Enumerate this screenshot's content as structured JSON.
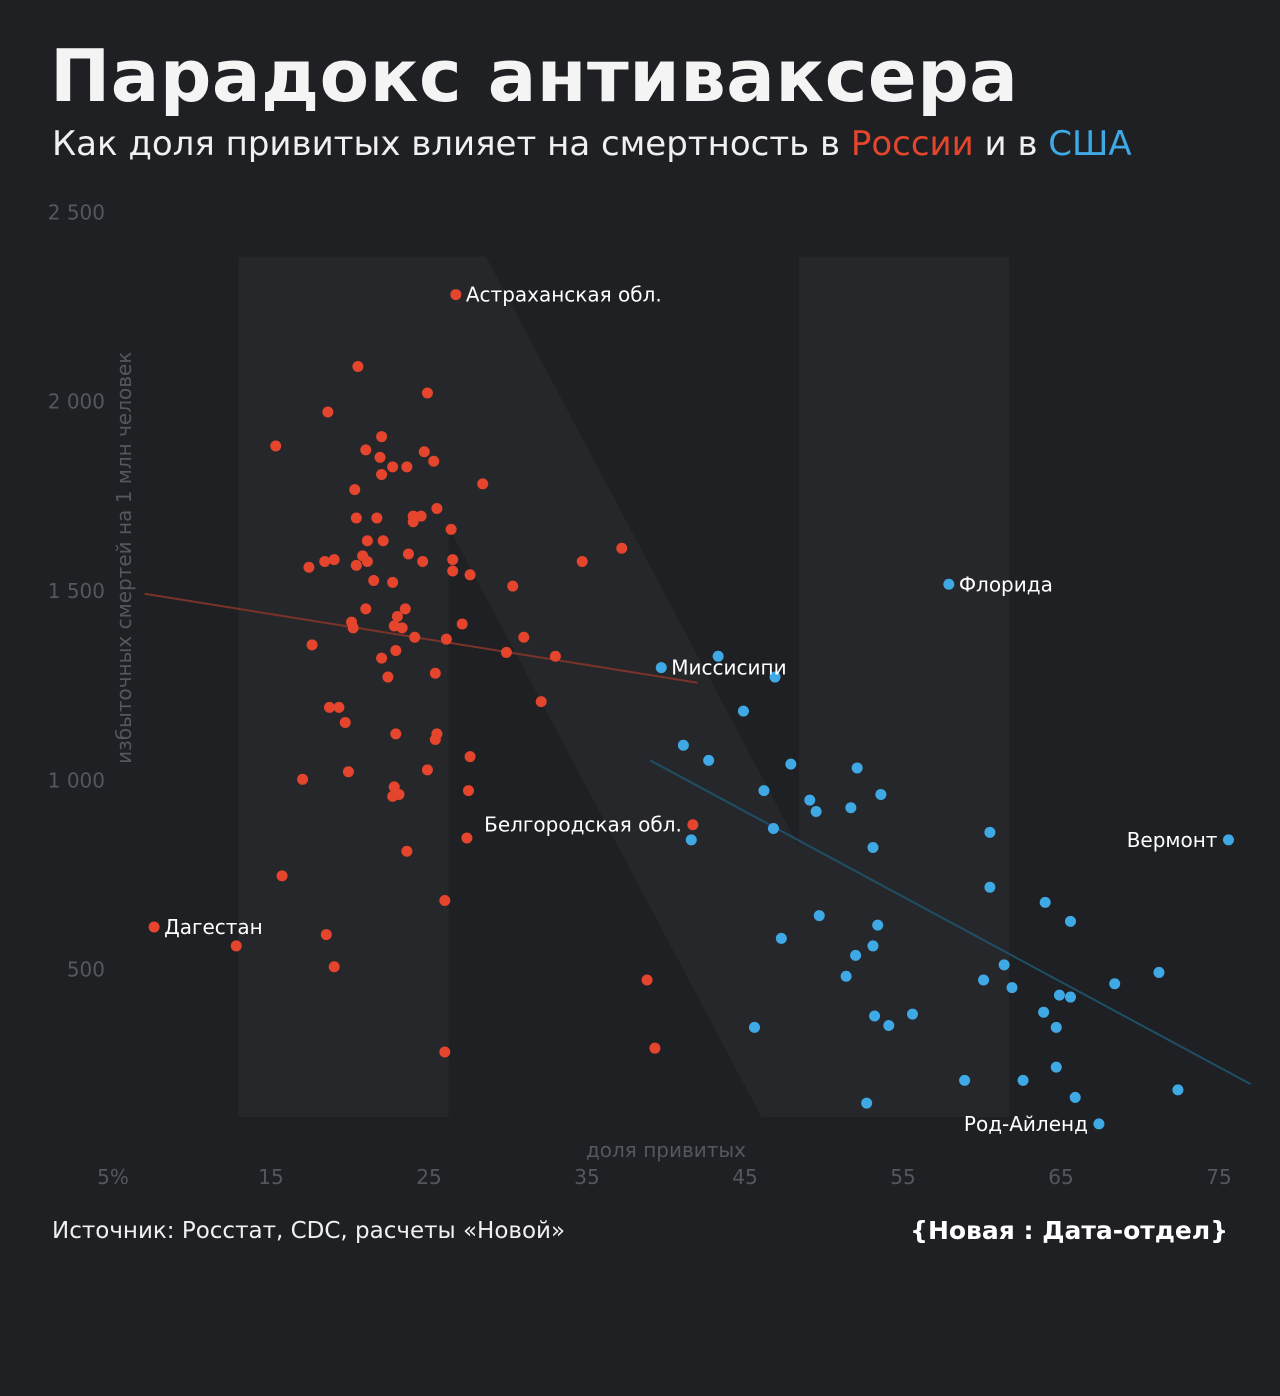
{
  "header": {
    "title": "Парадокс антиваксера",
    "subtitle_prefix": "Как доля привитых влияет на смертность в ",
    "subtitle_russia": "России",
    "subtitle_middle": " и в ",
    "subtitle_usa": "США"
  },
  "footer": {
    "source": "Источник: Росстат, CDC, расчеты «Новой»",
    "brand": "{Новая : Дата-отдел}"
  },
  "colors": {
    "background": "#1f2024",
    "russia": "#e5452c",
    "usa": "#3fa9e6",
    "russia_trend": "#7a3329",
    "usa_trend": "#1f4f66",
    "axis_text": "#55575c"
  },
  "chart_data": {
    "type": "scatter",
    "xlabel": "доля привитых",
    "ylabel": "избыточных смертей на 1 млн человек",
    "xlim": [
      5,
      77
    ],
    "ylim": [
      0,
      2600
    ],
    "x_ticks": [
      5,
      15,
      25,
      35,
      45,
      55,
      65,
      75
    ],
    "x_tick_labels": [
      "5%",
      "15",
      "25",
      "35",
      "45",
      "55",
      "65",
      "75"
    ],
    "y_ticks": [
      500,
      1000,
      1500,
      2000,
      2500
    ],
    "y_tick_labels": [
      "500",
      "1 000",
      "1 500",
      "2 000",
      "2 500"
    ],
    "grid": false,
    "series": [
      {
        "name": "России",
        "color": "#e5452c",
        "trend": [
          [
            7,
            1490
          ],
          [
            42,
            1255
          ]
        ],
        "labels": [
          {
            "text": "Астраханская обл.",
            "x": 26.7,
            "y": 2280,
            "side": "right"
          },
          {
            "text": "Дагестан",
            "x": 7.6,
            "y": 610,
            "side": "right"
          },
          {
            "text": "Белгородская обл.",
            "x": 41.7,
            "y": 880,
            "side": "left"
          }
        ],
        "points": [
          [
            26.7,
            2280
          ],
          [
            20.5,
            2090
          ],
          [
            24.9,
            2020
          ],
          [
            18.6,
            1970
          ],
          [
            15.3,
            1880
          ],
          [
            22.0,
            1905
          ],
          [
            21.0,
            1870
          ],
          [
            24.7,
            1865
          ],
          [
            21.9,
            1850
          ],
          [
            22.7,
            1825
          ],
          [
            23.6,
            1825
          ],
          [
            25.3,
            1840
          ],
          [
            22.0,
            1805
          ],
          [
            28.4,
            1780
          ],
          [
            20.3,
            1765
          ],
          [
            25.5,
            1715
          ],
          [
            24.0,
            1695
          ],
          [
            24.5,
            1695
          ],
          [
            21.7,
            1690
          ],
          [
            20.4,
            1690
          ],
          [
            24.0,
            1680
          ],
          [
            26.4,
            1660
          ],
          [
            21.1,
            1630
          ],
          [
            22.1,
            1630
          ],
          [
            37.2,
            1610
          ],
          [
            23.7,
            1595
          ],
          [
            20.8,
            1590
          ],
          [
            19.0,
            1580
          ],
          [
            21.1,
            1575
          ],
          [
            26.5,
            1580
          ],
          [
            24.6,
            1575
          ],
          [
            18.4,
            1575
          ],
          [
            34.7,
            1575
          ],
          [
            20.4,
            1565
          ],
          [
            17.4,
            1560
          ],
          [
            26.5,
            1550
          ],
          [
            27.6,
            1540
          ],
          [
            21.5,
            1525
          ],
          [
            22.7,
            1520
          ],
          [
            30.3,
            1510
          ],
          [
            23.5,
            1450
          ],
          [
            21.0,
            1450
          ],
          [
            23.0,
            1430
          ],
          [
            20.1,
            1415
          ],
          [
            20.2,
            1400
          ],
          [
            22.8,
            1405
          ],
          [
            23.3,
            1400
          ],
          [
            27.1,
            1410
          ],
          [
            24.1,
            1375
          ],
          [
            26.1,
            1370
          ],
          [
            31.0,
            1375
          ],
          [
            17.6,
            1355
          ],
          [
            22.9,
            1340
          ],
          [
            29.9,
            1335
          ],
          [
            22.0,
            1320
          ],
          [
            33.0,
            1325
          ],
          [
            25.4,
            1280
          ],
          [
            22.4,
            1270
          ],
          [
            32.1,
            1205
          ],
          [
            18.7,
            1190
          ],
          [
            19.3,
            1190
          ],
          [
            19.7,
            1150
          ],
          [
            25.5,
            1120
          ],
          [
            22.9,
            1120
          ],
          [
            25.4,
            1105
          ],
          [
            27.6,
            1060
          ],
          [
            24.9,
            1025
          ],
          [
            19.9,
            1020
          ],
          [
            17.0,
            1000
          ],
          [
            22.8,
            980
          ],
          [
            27.5,
            970
          ],
          [
            23.1,
            960
          ],
          [
            22.7,
            955
          ],
          [
            27.4,
            845
          ],
          [
            23.6,
            810
          ],
          [
            41.7,
            880
          ],
          [
            15.7,
            745
          ],
          [
            26.0,
            680
          ],
          [
            7.6,
            610
          ],
          [
            18.5,
            590
          ],
          [
            12.8,
            560
          ],
          [
            19.0,
            505
          ],
          [
            38.8,
            470
          ],
          [
            39.3,
            290
          ],
          [
            26.0,
            280
          ]
        ]
      },
      {
        "name": "США",
        "color": "#3fa9e6",
        "trend": [
          [
            39,
            1050
          ],
          [
            77,
            195
          ]
        ],
        "labels": [
          {
            "text": "Флорида",
            "x": 57.9,
            "y": 1515,
            "side": "right"
          },
          {
            "text": "Миссисипи",
            "x": 39.7,
            "y": 1295,
            "side": "right"
          },
          {
            "text": "Вермонт",
            "x": 75.6,
            "y": 840,
            "side": "left"
          },
          {
            "text": "Род-Айленд",
            "x": 67.4,
            "y": 90,
            "side": "left"
          }
        ],
        "points": [
          [
            57.9,
            1515
          ],
          [
            39.7,
            1295
          ],
          [
            43.3,
            1325
          ],
          [
            46.9,
            1270
          ],
          [
            44.9,
            1180
          ],
          [
            41.1,
            1090
          ],
          [
            42.7,
            1050
          ],
          [
            47.9,
            1040
          ],
          [
            52.1,
            1030
          ],
          [
            46.2,
            970
          ],
          [
            53.6,
            960
          ],
          [
            49.1,
            945
          ],
          [
            51.7,
            925
          ],
          [
            49.5,
            915
          ],
          [
            46.8,
            870
          ],
          [
            41.6,
            840
          ],
          [
            53.1,
            820
          ],
          [
            60.5,
            860
          ],
          [
            75.6,
            840
          ],
          [
            60.5,
            715
          ],
          [
            64.0,
            675
          ],
          [
            49.7,
            640
          ],
          [
            65.6,
            625
          ],
          [
            53.4,
            615
          ],
          [
            47.3,
            580
          ],
          [
            53.1,
            560
          ],
          [
            52.0,
            535
          ],
          [
            61.4,
            510
          ],
          [
            71.2,
            490
          ],
          [
            51.4,
            480
          ],
          [
            60.1,
            470
          ],
          [
            68.4,
            460
          ],
          [
            61.9,
            450
          ],
          [
            64.9,
            430
          ],
          [
            65.6,
            425
          ],
          [
            63.9,
            385
          ],
          [
            53.2,
            375
          ],
          [
            55.6,
            380
          ],
          [
            45.6,
            345
          ],
          [
            54.1,
            350
          ],
          [
            64.7,
            345
          ],
          [
            64.7,
            240
          ],
          [
            58.9,
            205
          ],
          [
            62.6,
            205
          ],
          [
            72.4,
            180
          ],
          [
            65.9,
            160
          ],
          [
            52.7,
            145
          ],
          [
            67.4,
            90
          ]
        ]
      }
    ]
  }
}
